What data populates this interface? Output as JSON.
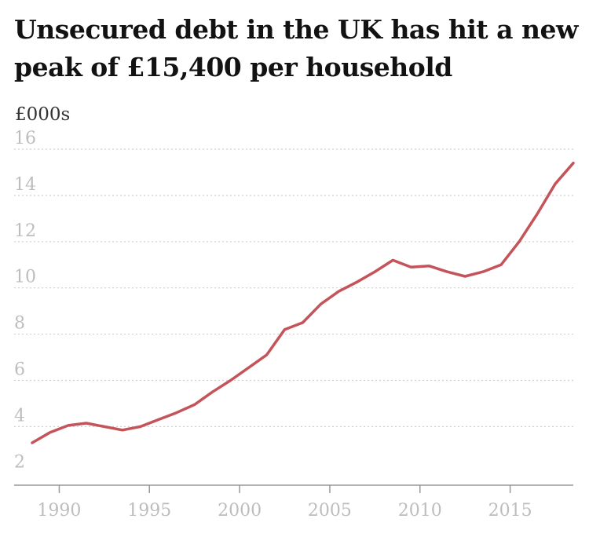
{
  "chart_data": {
    "type": "line",
    "title": "Unsecured debt in the UK has hit a new peak of £15,400 per household",
    "ylabel": "£000s",
    "xlabel": "",
    "xlim": [
      1987.5,
      2018.5
    ],
    "ylim": [
      1.5,
      16
    ],
    "x_ticks": [
      1990,
      1995,
      2000,
      2005,
      2010,
      2015
    ],
    "y_ticks": [
      2,
      4,
      6,
      8,
      10,
      12,
      14,
      16
    ],
    "grid": true,
    "line_color": "#c4545a",
    "series": [
      {
        "x": [
          1988.5,
          1989.5,
          1990.5,
          1991.5,
          1992.5,
          1993.5,
          1994.5,
          1995.5,
          1996.5,
          1997.5,
          1998.5,
          1999.5,
          2000.5,
          2001.5,
          2002.5,
          2003.5,
          2004.5,
          2005.5,
          2006.5,
          2007.5,
          2008.5,
          2009.5,
          2010.5,
          2011.5,
          2012.5,
          2013.5,
          2014.5,
          2015.5,
          2016.5,
          2017.5,
          2018.5
        ],
        "values": [
          3.3,
          3.75,
          4.05,
          4.15,
          4.0,
          3.85,
          4.0,
          4.3,
          4.6,
          4.95,
          5.5,
          6.0,
          6.55,
          7.1,
          8.2,
          8.5,
          9.3,
          9.85,
          10.25,
          10.7,
          11.2,
          10.9,
          10.95,
          10.7,
          10.5,
          10.7,
          11.0,
          12.0,
          13.2,
          14.5,
          15.4
        ]
      }
    ]
  }
}
